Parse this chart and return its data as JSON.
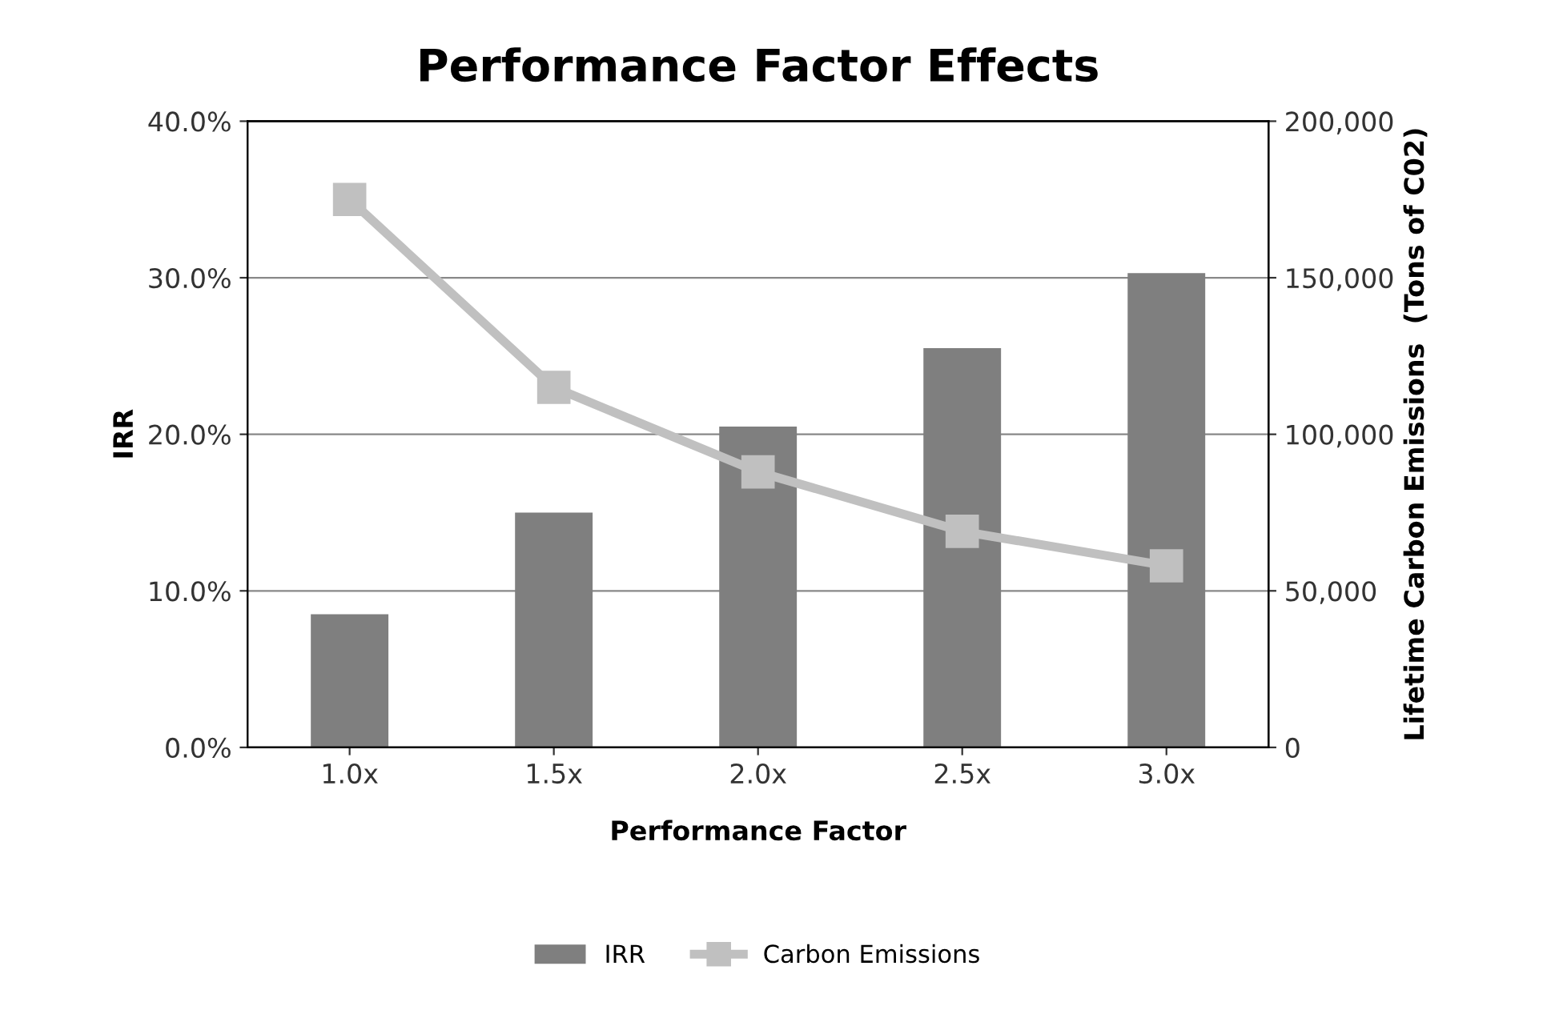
{
  "chart_data": {
    "type": "bar",
    "title": "Performance Factor Effects",
    "xlabel": "Performance Factor",
    "ylabel": "IRR",
    "y2label": "Lifetime Carbon Emissions  (Tons of C02)",
    "categories": [
      "1.0x",
      "1.5x",
      "2.0x",
      "2.5x",
      "3.0x"
    ],
    "series": [
      {
        "name": "IRR",
        "color": "#7f7f7f",
        "values": [
          8.5,
          15.0,
          20.5,
          25.5,
          30.3
        ]
      },
      {
        "name": "Carbon Emissions",
        "type": "line",
        "axis": "y2",
        "color": "#c0c0c0",
        "marker": "square",
        "values": [
          175000,
          115000,
          88000,
          69000,
          58000
        ]
      }
    ],
    "ylim": [
      0,
      40
    ],
    "yticks": [
      {
        "value": 0,
        "label": "0.0%"
      },
      {
        "value": 10,
        "label": "10.0%"
      },
      {
        "value": 20,
        "label": "20.0%"
      },
      {
        "value": 30,
        "label": "30.0%"
      },
      {
        "value": 40,
        "label": "40.0%"
      }
    ],
    "y2lim": [
      0,
      200000
    ],
    "y2ticks": [
      {
        "value": 0,
        "label": "0"
      },
      {
        "value": 50000,
        "label": "50,000"
      },
      {
        "value": 100000,
        "label": "100,000"
      },
      {
        "value": 150000,
        "label": "150,000"
      },
      {
        "value": 200000,
        "label": "200,000"
      }
    ],
    "grid": "y",
    "legend": "bottom"
  }
}
